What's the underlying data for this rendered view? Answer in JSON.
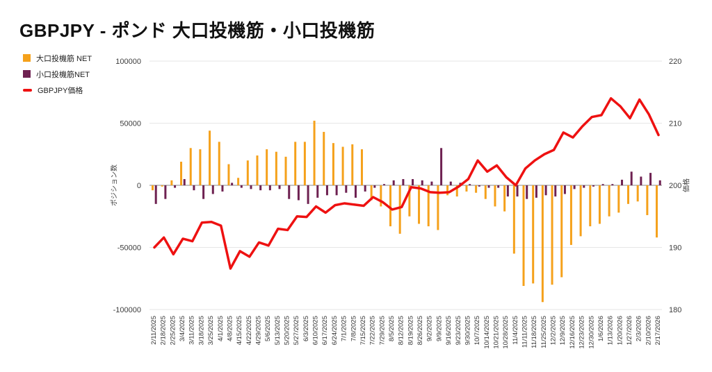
{
  "title": "GBPJPY - ポンド 大口投機筋・小口投機筋",
  "legend": [
    {
      "id": "large-net",
      "label": "大口投機筋  NET",
      "color": "#F5A11B",
      "swatch": "square"
    },
    {
      "id": "small-net",
      "label": "小口投機筋NET",
      "color": "#6E2151",
      "swatch": "square"
    },
    {
      "id": "price",
      "label": "GBPJPY価格",
      "color": "#EE1111",
      "swatch": "line"
    }
  ],
  "axes": {
    "left": {
      "label": "ポジション数",
      "ticks": [
        "100000",
        "50000",
        "0",
        "-50000",
        "-100000"
      ],
      "range": [
        -100000,
        100000
      ]
    },
    "right": {
      "label": "価格",
      "ticks": [
        "220",
        "210",
        "200",
        "190",
        "180"
      ],
      "range": [
        180,
        220
      ]
    }
  },
  "colors": {
    "grid": "#E6E6E6",
    "zero_line": "#A0A0A0",
    "tick_text": "#3C3C3C",
    "date_text": "#333333",
    "background": "#FFFFFF"
  },
  "chart_data": {
    "type": "bar",
    "subtype": "combo-bar-line",
    "title": "GBPJPY - ポンド 大口投機筋・小口投機筋",
    "xlabel": "",
    "ylabel_left": "ポジション数",
    "ylabel_right": "価格",
    "ylim_left": [
      -100000,
      100000
    ],
    "ylim_right": [
      180,
      220
    ],
    "grid": true,
    "legend_position": "top-left",
    "categories": [
      "2/11/2025",
      "2/18/2025",
      "2/25/2025",
      "3/4/2025",
      "3/11/2025",
      "3/18/2025",
      "3/25/2025",
      "4/1/2025",
      "4/8/2025",
      "4/15/2025",
      "4/22/2025",
      "4/29/2025",
      "5/6/2025",
      "5/13/2025",
      "5/20/2025",
      "5/27/2025",
      "6/3/2025",
      "6/10/2025",
      "6/17/2025",
      "6/24/2025",
      "7/1/2025",
      "7/8/2025",
      "7/15/2025",
      "7/22/2025",
      "7/29/2025",
      "8/5/2025",
      "8/12/2025",
      "8/19/2025",
      "8/26/2025",
      "9/2/2025",
      "9/9/2025",
      "9/16/2025",
      "9/23/2025",
      "9/30/2025",
      "10/7/2025",
      "10/14/2025",
      "10/21/2025",
      "10/28/2025",
      "11/4/2025",
      "11/11/2025",
      "11/18/2025",
      "11/25/2025",
      "12/2/2025",
      "12/9/2025",
      "12/16/2025",
      "12/23/2025",
      "12/30/2025",
      "1/6/2026",
      "1/13/2026",
      "1/20/2026",
      "1/27/2026",
      "2/3/2026",
      "2/10/2026",
      "2/17/2026"
    ],
    "series": [
      {
        "name": "大口投機筋  NET",
        "type": "bar",
        "axis": "left",
        "color": "#F5A11B",
        "values": [
          -4000,
          -1000,
          4000,
          19000,
          30000,
          29000,
          44000,
          35000,
          17000,
          6000,
          20000,
          24000,
          29000,
          27000,
          23000,
          35000,
          35000,
          52000,
          43000,
          34000,
          31000,
          33000,
          29000,
          -12000,
          -17000,
          -33000,
          -39000,
          -25000,
          -31000,
          -33000,
          -36000,
          -8000,
          -9000,
          -5000,
          -6000,
          -11000,
          -17000,
          -21000,
          -55000,
          -81000,
          -79000,
          -94000,
          -80000,
          -74000,
          -48000,
          -41000,
          -33000,
          -31000,
          -25000,
          -22000,
          -15000,
          -13000,
          -24000,
          -42000
        ]
      },
      {
        "name": "小口投機筋NET",
        "type": "bar",
        "axis": "left",
        "color": "#6E2151",
        "values": [
          -15000,
          -11000,
          -2000,
          5000,
          -4000,
          -11000,
          -7000,
          -5000,
          2000,
          -2000,
          -3000,
          -4000,
          -4000,
          -3000,
          -11000,
          -12000,
          -15000,
          -10000,
          -8000,
          -8000,
          -6000,
          -10000,
          -5000,
          -2000,
          1000,
          4000,
          5000,
          5000,
          4000,
          3000,
          30000,
          3000,
          2000,
          1000,
          -1000,
          -2000,
          -2000,
          -9000,
          -9000,
          -11000,
          -10000,
          -8000,
          -9000,
          -7000,
          -3000,
          -2000,
          -1000,
          1000,
          1000,
          4500,
          11000,
          7000,
          10000,
          4000
        ]
      },
      {
        "name": "GBPJPY価格",
        "type": "line",
        "axis": "right",
        "color": "#EE1111",
        "values": [
          190.0,
          191.6,
          188.9,
          191.4,
          191.0,
          194.0,
          194.1,
          193.5,
          186.6,
          189.4,
          188.5,
          190.8,
          190.3,
          193.0,
          192.8,
          195.0,
          194.9,
          196.6,
          195.6,
          196.8,
          197.1,
          196.9,
          196.7,
          198.1,
          197.3,
          196.1,
          196.5,
          199.7,
          199.5,
          198.9,
          198.8,
          198.9,
          199.8,
          201.0,
          204.0,
          202.2,
          203.2,
          201.3,
          200.0,
          202.7,
          204.0,
          205.0,
          205.7,
          208.5,
          207.7,
          209.5,
          211.0,
          211.3,
          214.0,
          212.7,
          210.8,
          213.8,
          211.4,
          208.1
        ]
      }
    ]
  }
}
